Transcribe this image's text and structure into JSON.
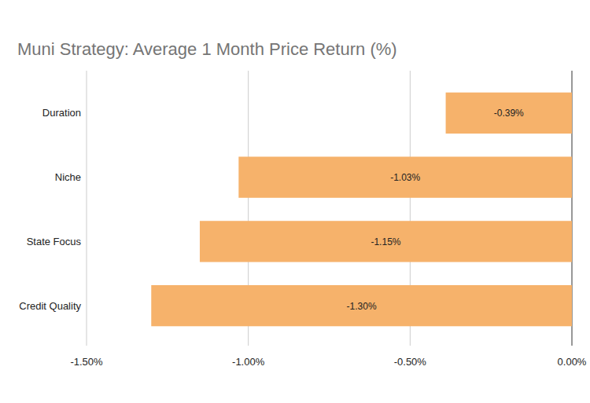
{
  "chart_data": {
    "type": "bar",
    "orientation": "horizontal",
    "title": "Muni Strategy: Average 1 Month Price Return (%)",
    "categories": [
      "Duration",
      "Niche",
      "State Focus",
      "Credit Quality"
    ],
    "values": [
      -0.39,
      -1.03,
      -1.15,
      -1.3
    ],
    "value_labels": [
      "-0.39%",
      "-1.03%",
      "-1.15%",
      "-1.30%"
    ],
    "data_labels": true,
    "color": "#f6b26b",
    "xlim": [
      -1.5,
      0
    ],
    "xticks": [
      {
        "value": -1.5,
        "label": "-1.50%"
      },
      {
        "value": -1.0,
        "label": "-1.00%"
      },
      {
        "value": -0.5,
        "label": "-0.50%"
      },
      {
        "value": 0,
        "label": "0.00%"
      }
    ],
    "grid": true
  }
}
